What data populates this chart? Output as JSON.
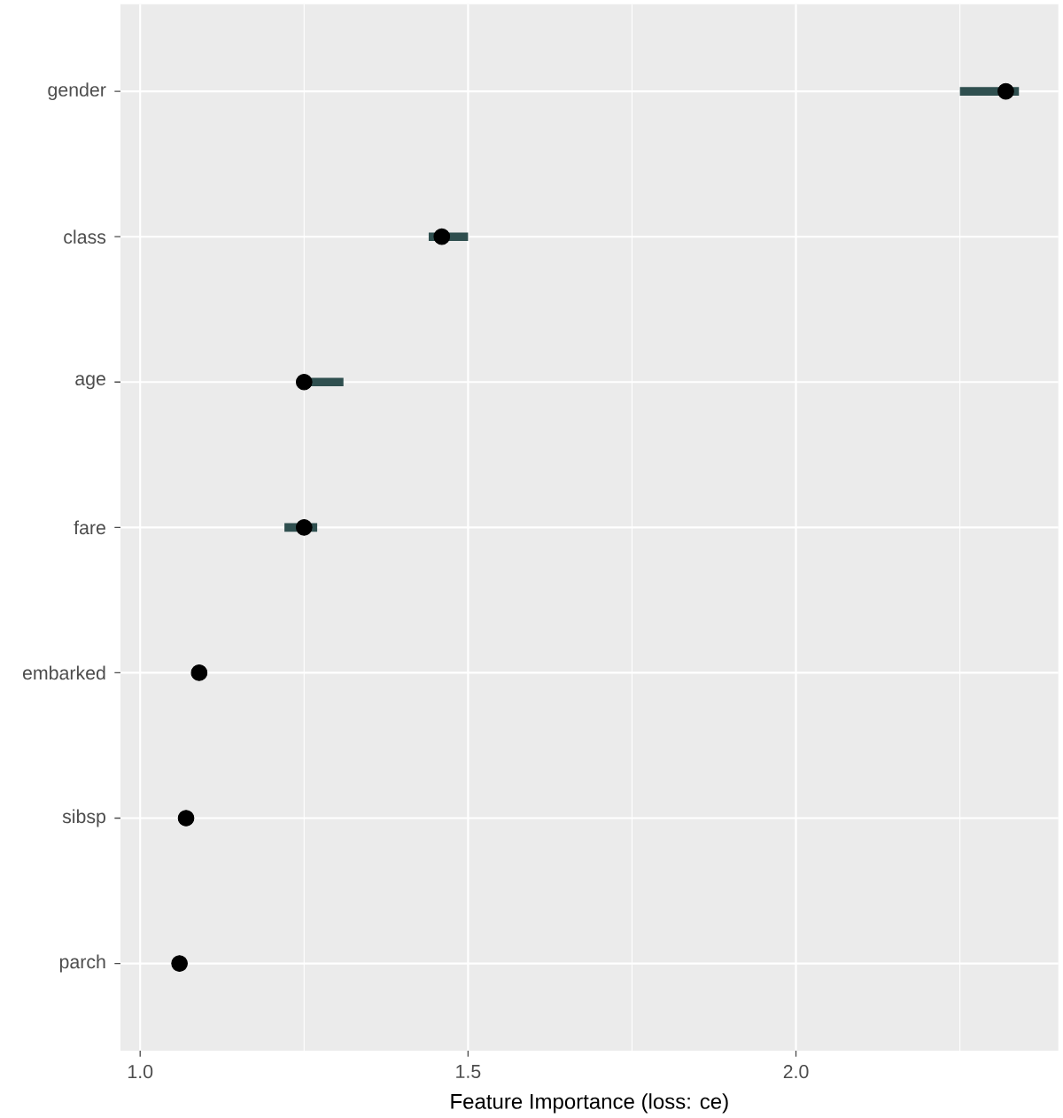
{
  "chart_data": {
    "type": "scatter",
    "orientation": "horizontal",
    "xlabel": "Feature Importance (loss: ce)",
    "categories": [
      "gender",
      "class",
      "age",
      "fare",
      "embarked",
      "sibsp",
      "parch"
    ],
    "values": [
      2.32,
      1.46,
      1.25,
      1.25,
      1.09,
      1.07,
      1.06
    ],
    "errors": [
      [
        2.25,
        2.34
      ],
      [
        1.44,
        1.5
      ],
      [
        1.25,
        1.31
      ],
      [
        1.22,
        1.27
      ],
      null,
      [
        1.06,
        1.08
      ],
      [
        1.05,
        1.07
      ]
    ],
    "color": "#000000",
    "marker": "circle",
    "grid": true,
    "xlim": [
      0.97,
      2.4
    ],
    "xticks": [
      {
        "value": 1.0,
        "label": "1.0"
      },
      {
        "value": 1.25,
        "label": null
      },
      {
        "value": 1.5,
        "label": "1.5"
      },
      {
        "value": 1.75,
        "label": null
      },
      {
        "value": 2.0,
        "label": "2.0"
      },
      {
        "value": 2.25,
        "label": null
      }
    ]
  }
}
